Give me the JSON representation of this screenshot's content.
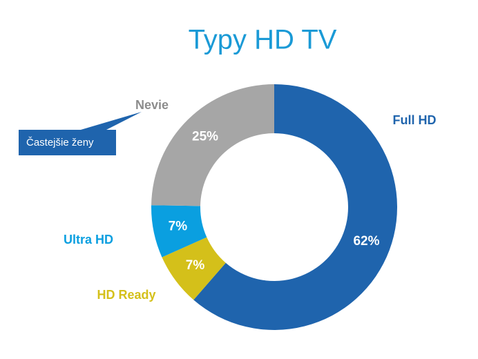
{
  "chart_data": {
    "type": "donut",
    "title": "Typy HD TV",
    "categories": [
      "Full HD",
      "HD Ready",
      "Ultra HD",
      "Nevie"
    ],
    "values": [
      62,
      7,
      7,
      25
    ],
    "value_labels": [
      "62%",
      "7%",
      "7%",
      "25%"
    ],
    "colors": [
      "#1f64ad",
      "#d4c01a",
      "#0a9fe0",
      "#a6a6a6"
    ],
    "annotation": "Častejšie ženy"
  }
}
